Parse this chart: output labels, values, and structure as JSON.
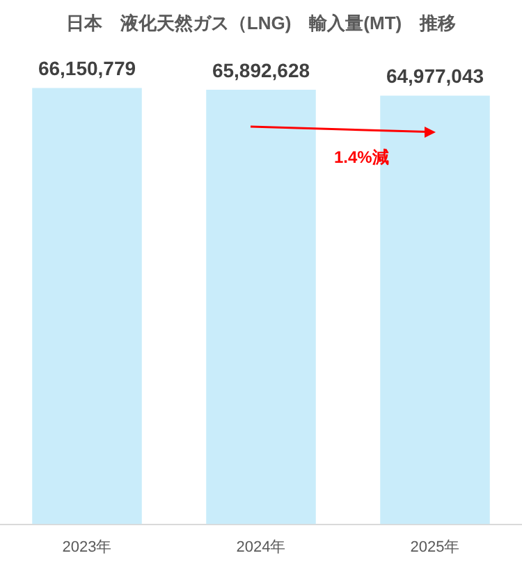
{
  "chart_data": {
    "type": "bar",
    "title": "日本　液化天然ガス（LNG)　輸入量(MT)　推移",
    "categories": [
      "2023年",
      "2024年",
      "2025年"
    ],
    "values": [
      66150779,
      65892628,
      64977043
    ],
    "color": "#c9ecfa",
    "value_labels": [
      "66,150,779",
      "65,892,628",
      "64,977,043"
    ],
    "tick_labels": "x",
    "grid": false,
    "legend": false,
    "annotations": [
      "1.4%減"
    ]
  }
}
